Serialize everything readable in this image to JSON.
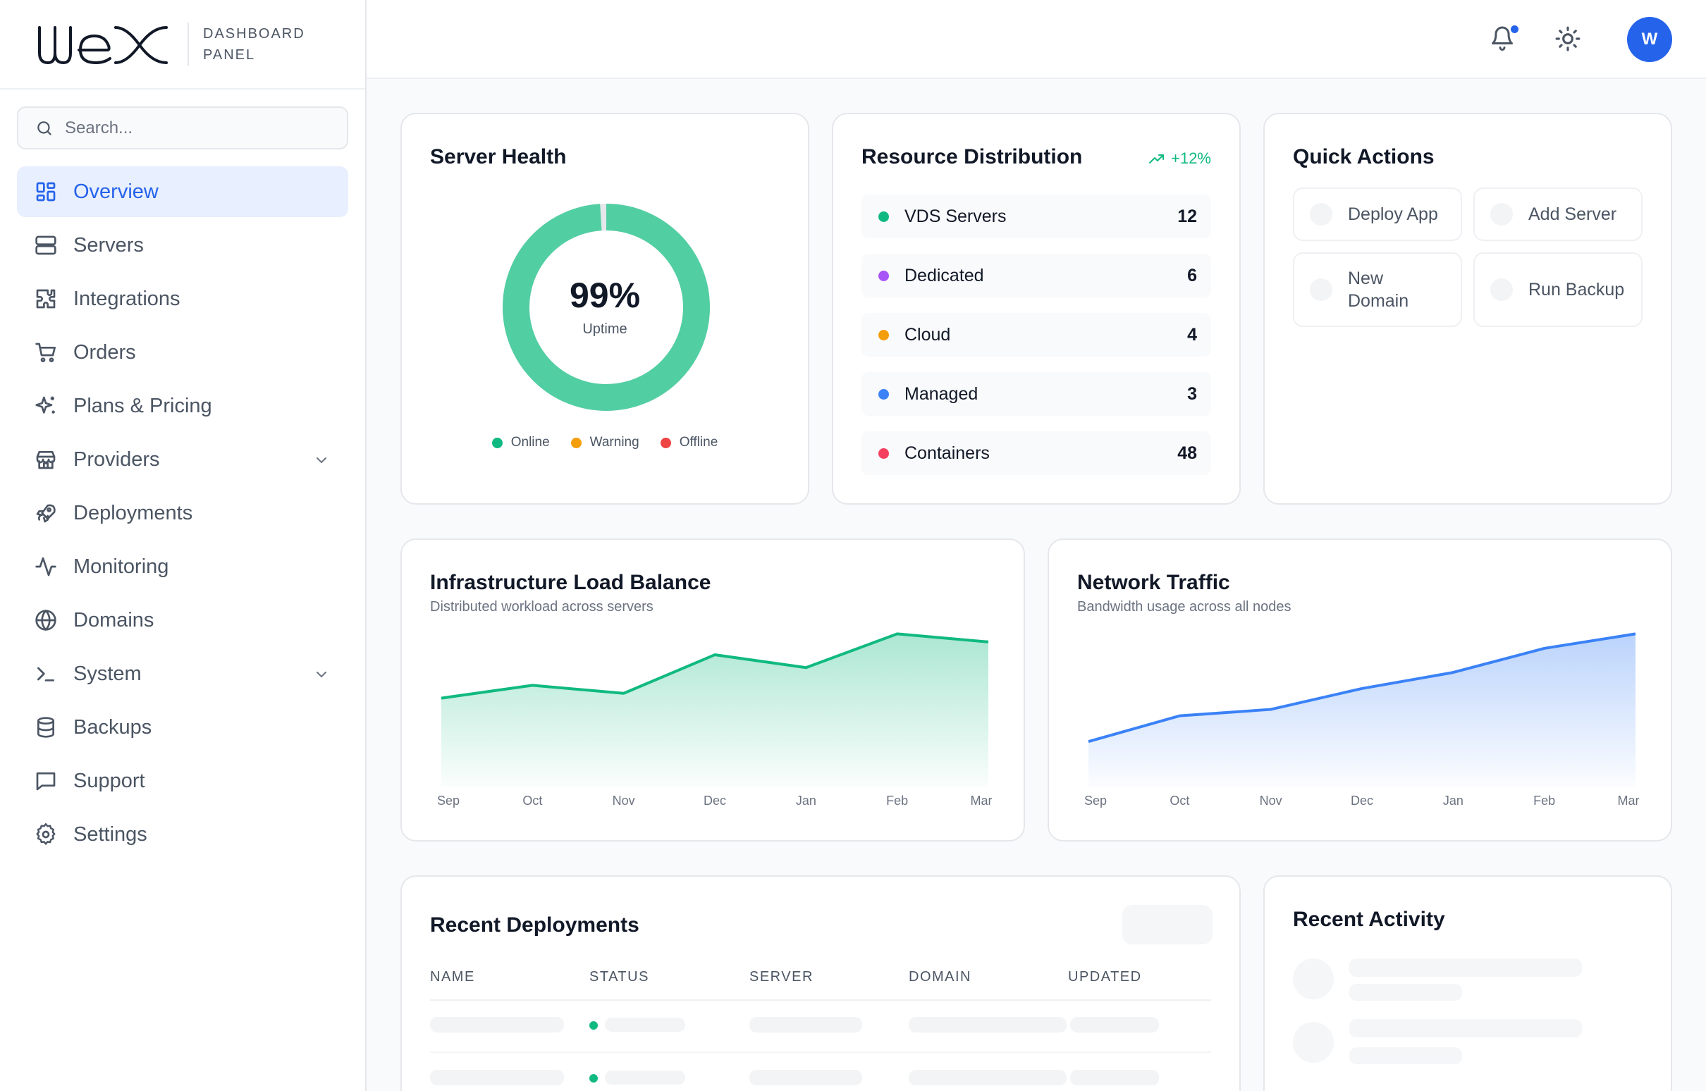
{
  "brand": {
    "logo_text": "wex",
    "subtitle_line1": "DASHBOARD",
    "subtitle_line2": "PANEL"
  },
  "search": {
    "placeholder": "Search..."
  },
  "sidebar": {
    "items": [
      {
        "label": "Overview",
        "icon": "grid-icon",
        "active": true
      },
      {
        "label": "Servers",
        "icon": "server-icon"
      },
      {
        "label": "Integrations",
        "icon": "puzzle-icon"
      },
      {
        "label": "Orders",
        "icon": "cart-icon"
      },
      {
        "label": "Plans & Pricing",
        "icon": "sparkles-icon"
      },
      {
        "label": "Providers",
        "icon": "store-icon",
        "expandable": true
      },
      {
        "label": "Deployments",
        "icon": "rocket-icon"
      },
      {
        "label": "Monitoring",
        "icon": "activity-icon"
      },
      {
        "label": "Domains",
        "icon": "globe-icon"
      },
      {
        "label": "System",
        "icon": "terminal-icon",
        "expandable": true
      },
      {
        "label": "Backups",
        "icon": "database-icon"
      },
      {
        "label": "Support",
        "icon": "message-icon"
      },
      {
        "label": "Settings",
        "icon": "gear-icon"
      }
    ]
  },
  "header": {
    "avatar_initial": "W",
    "has_notification": true
  },
  "server_health": {
    "title": "Server Health",
    "uptime_value": "99%",
    "uptime_label": "Uptime",
    "uptime_fraction": 0.99,
    "legend": [
      {
        "label": "Online",
        "color": "#10b981"
      },
      {
        "label": "Warning",
        "color": "#f59e0b"
      },
      {
        "label": "Offline",
        "color": "#ef4444"
      }
    ]
  },
  "resource_distribution": {
    "title": "Resource Distribution",
    "trend": "+12%",
    "rows": [
      {
        "label": "VDS Servers",
        "value": "12",
        "color": "#10b981"
      },
      {
        "label": "Dedicated",
        "value": "6",
        "color": "#a855f7"
      },
      {
        "label": "Cloud",
        "value": "4",
        "color": "#f59e0b"
      },
      {
        "label": "Managed",
        "value": "3",
        "color": "#3b82f6"
      },
      {
        "label": "Containers",
        "value": "48",
        "color": "#f43f5e"
      }
    ]
  },
  "quick_actions": {
    "title": "Quick Actions",
    "buttons": [
      "Deploy App",
      "Add Server",
      "New Domain",
      "Run Backup"
    ]
  },
  "load_balance": {
    "title": "Infrastructure Load Balance",
    "subtitle": "Distributed workload across servers"
  },
  "network_traffic": {
    "title": "Network Traffic",
    "subtitle": "Bandwidth usage across all nodes"
  },
  "chart_data": [
    {
      "type": "area",
      "title": "Infrastructure Load Balance",
      "categories": [
        "Sep",
        "Oct",
        "Nov",
        "Dec",
        "Jan",
        "Feb",
        "Mar"
      ],
      "values": [
        55,
        63,
        58,
        82,
        74,
        95,
        90
      ],
      "ylim": [
        0,
        100
      ],
      "color": "#10b981",
      "grid": false
    },
    {
      "type": "area",
      "title": "Network Traffic",
      "categories": [
        "Sep",
        "Oct",
        "Nov",
        "Dec",
        "Jan",
        "Feb",
        "Mar"
      ],
      "values": [
        28,
        44,
        48,
        61,
        71,
        86,
        95
      ],
      "ylim": [
        0,
        100
      ],
      "color": "#3b82f6",
      "grid": false
    }
  ],
  "recent_deployments": {
    "title": "Recent Deployments",
    "columns": [
      "NAME",
      "STATUS",
      "SERVER",
      "DOMAIN",
      "UPDATED"
    ],
    "status_color": "#10b981"
  },
  "recent_activity": {
    "title": "Recent Activity"
  }
}
